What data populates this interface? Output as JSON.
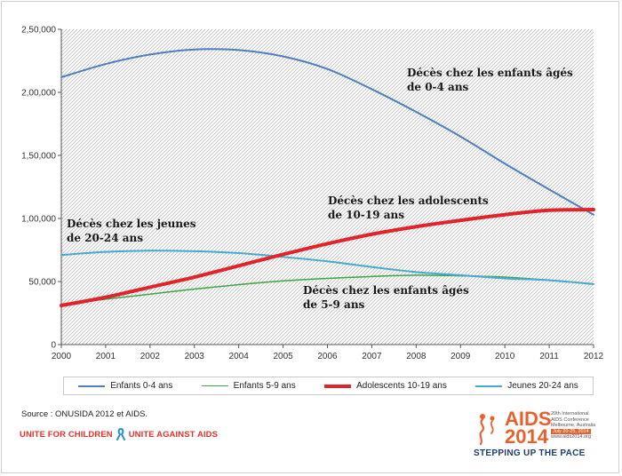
{
  "chart_data": {
    "type": "line",
    "x": [
      2000,
      2001,
      2002,
      2003,
      2004,
      2005,
      2006,
      2007,
      2008,
      2009,
      2010,
      2011,
      2012
    ],
    "ylim": [
      0,
      250000
    ],
    "yticks": [
      "0",
      "50,000",
      "1,00,000",
      "1,50,000",
      "2,00,000",
      "2,50,000"
    ],
    "ytick_values": [
      0,
      50000,
      100000,
      150000,
      200000,
      250000
    ],
    "xticks": [
      "2000",
      "2001",
      "2002",
      "2003",
      "2004",
      "2005",
      "2006",
      "2007",
      "2008",
      "2009",
      "2010",
      "2011",
      "2012"
    ],
    "background": "diagonal hatch",
    "legend_position": "bottom",
    "series": [
      {
        "name": "Enfants 0-4 ans",
        "color": "#4e7fc0",
        "width": 2,
        "values": [
          212000,
          222500,
          230000,
          234000,
          233500,
          228500,
          218500,
          202500,
          184500,
          165000,
          143500,
          123000,
          103000
        ]
      },
      {
        "name": "Enfants 5-9 ans",
        "color": "#3aa843",
        "width": 1.5,
        "values": [
          32000,
          36000,
          40000,
          44000,
          47500,
          50500,
          52500,
          54000,
          55000,
          54500,
          53500,
          51000,
          48000
        ]
      },
      {
        "name": "Adolescents 10-19 ans",
        "color": "#e2232a",
        "width": 4,
        "values": [
          31000,
          37500,
          45500,
          53500,
          62500,
          71500,
          80000,
          87500,
          93500,
          98500,
          103000,
          106500,
          107000
        ]
      },
      {
        "name": "Jeunes 20-24 ans",
        "color": "#46a9d4",
        "width": 2,
        "values": [
          71000,
          73500,
          74500,
          74000,
          72500,
          69500,
          66000,
          61500,
          57500,
          55000,
          52500,
          51000,
          48000
        ]
      }
    ],
    "annotations": [
      {
        "lines": [
          "Décès chez les enfants âgés",
          "de 0-4 ans"
        ]
      },
      {
        "lines": [
          "Décès chez les adolescents",
          "de 10-19 ans"
        ]
      },
      {
        "lines": [
          "Décès chez les jeunes",
          "de 20-24 ans"
        ]
      },
      {
        "lines": [
          "Décès chez les enfants âgés",
          "de 5-9 ans"
        ]
      }
    ]
  },
  "footer": {
    "source": "Source : ONUSIDA 2012 et AIDS.",
    "campaign_left": "UNITE FOR CHILDREN",
    "campaign_right": "UNITE AGAINST AIDS"
  },
  "logo": {
    "title": "AIDS",
    "year": "2014",
    "info": [
      "20th International",
      "AIDS Conference",
      "Melbourne, Australia"
    ],
    "date": "July 20-25, 2014",
    "site": "www.aids2014.org",
    "slogan": "STEPPING UP THE PACE",
    "color": "#e8612c",
    "slogan_color": "#1b3f6e"
  }
}
